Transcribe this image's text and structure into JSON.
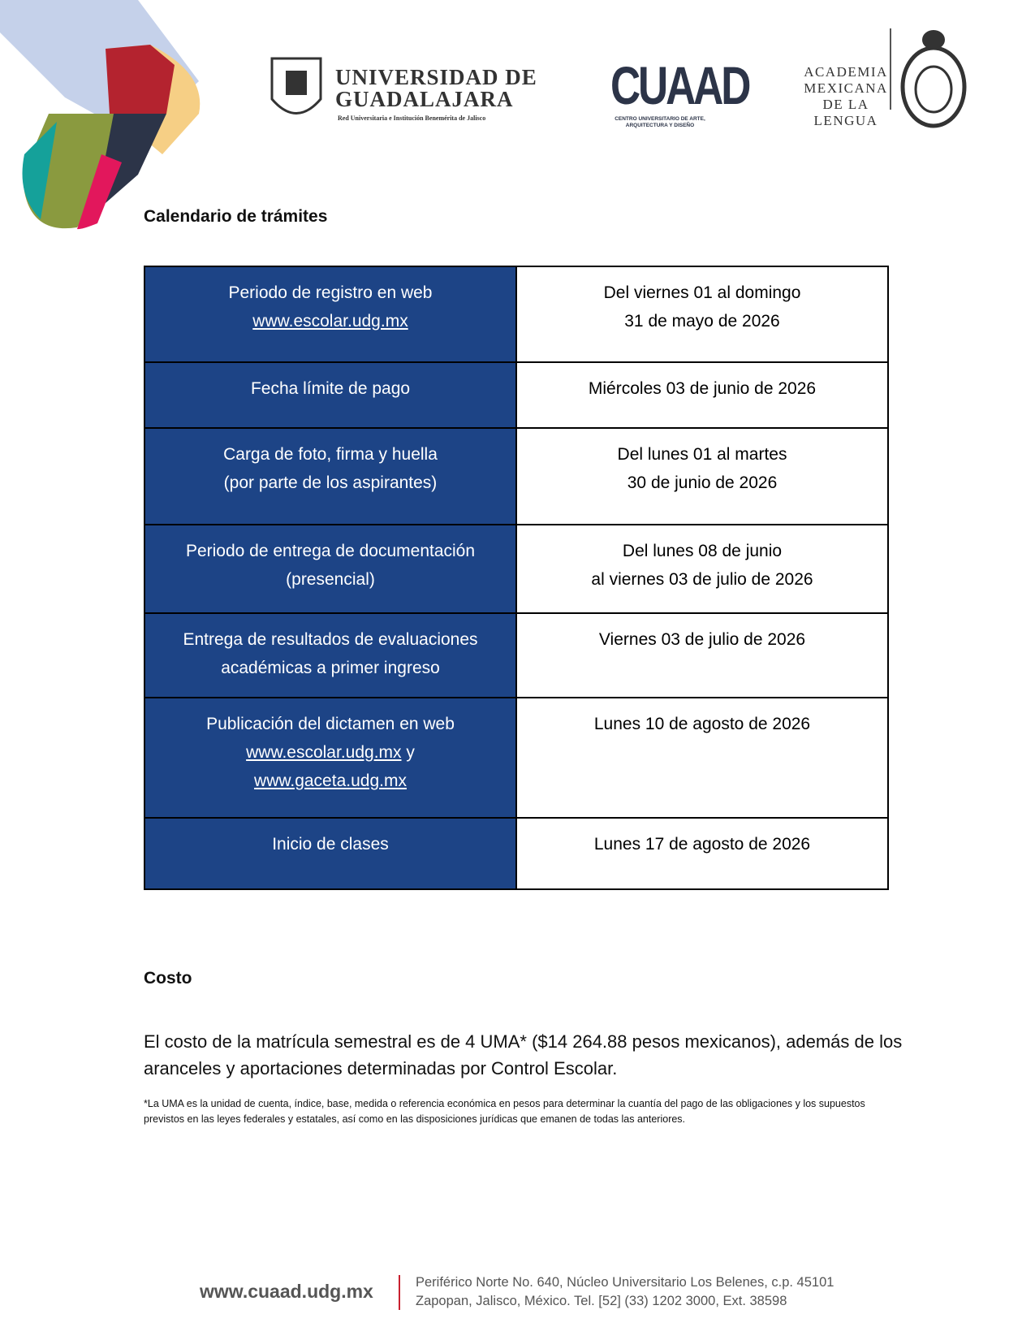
{
  "header": {
    "logos": [
      {
        "lines": [
          "UNIVERSIDAD DE",
          "GUADALAJARA",
          "Red Universitaria e Institución Benemérita de Jalisco"
        ]
      },
      {
        "lines": [
          "CUAAD",
          "CENTRO UNIVERSITARIO DE ARTE, ARQUITECTURA Y DISEÑO"
        ]
      },
      {
        "lines": [
          "ACADEMIA",
          "MEXICANA",
          "DE LA",
          "LENGUA"
        ]
      }
    ]
  },
  "title": "Calendario de trámites",
  "table": {
    "rows": [
      {
        "left": [
          [
            "Periodo de registro en web"
          ],
          [
            {
              "text": "www.escolar.udg.mx",
              "link": true
            }
          ]
        ],
        "right": [
          [
            "Del viernes 01 al domingo"
          ],
          [
            "31 de mayo de 2026"
          ]
        ]
      },
      {
        "left": [
          [
            "Fecha límite de pago"
          ]
        ],
        "right": [
          [
            "Miércoles 03 de junio de 2026"
          ]
        ]
      },
      {
        "left": [
          [
            "Carga de foto, firma y huella"
          ],
          [
            "(por parte de los aspirantes)"
          ]
        ],
        "right": [
          [
            "Del lunes 01 al martes"
          ],
          [
            "30 de junio de 2026"
          ]
        ]
      },
      {
        "left": [
          [
            "Periodo de entrega de documentación"
          ],
          [
            "(presencial)"
          ]
        ],
        "right": [
          [
            "Del lunes 08 de junio"
          ],
          [
            "al viernes 03 de julio de 2026"
          ]
        ]
      },
      {
        "left": [
          [
            "Entrega de resultados de evaluaciones"
          ],
          [
            "académicas a primer ingreso"
          ]
        ],
        "right": [
          [
            "Viernes 03 de julio de 2026"
          ]
        ]
      },
      {
        "left": [
          [
            "Publicación del dictamen en web"
          ],
          [
            {
              "text": "www.escolar.udg.mx",
              "link": true
            },
            " y"
          ],
          [
            {
              "text": "www.gaceta.udg.mx",
              "link": true
            }
          ]
        ],
        "right": [
          [
            "Lunes 10 de agosto de 2026"
          ]
        ]
      },
      {
        "left": [
          [
            "Inicio de clases"
          ]
        ],
        "right": [
          [
            "Lunes 17 de agosto de 2026"
          ]
        ]
      }
    ]
  },
  "cost": {
    "title": "Costo",
    "text": "El costo de la matrícula semestral es de 4 UMA* ($14 264.88 pesos mexicanos), además de los aranceles y aportaciones determinadas por Control Escolar.",
    "note": "*La UMA es la unidad de cuenta, índice, base, medida o referencia económica en pesos para determinar la cuantía del pago de las obligaciones y los supuestos previstos en las leyes federales y estatales, así como en las disposiciones jurídicas que emanen de todas las anteriores."
  },
  "footer": {
    "url": "www.cuaad.udg.mx",
    "address": [
      "Periférico Norte No. 640, Núcleo Universitario Los Belenes, c.p. 45101",
      "Zapopan, Jalisco, México. Tel. [52] (33) 1202 3000,  Ext. 38598"
    ]
  }
}
